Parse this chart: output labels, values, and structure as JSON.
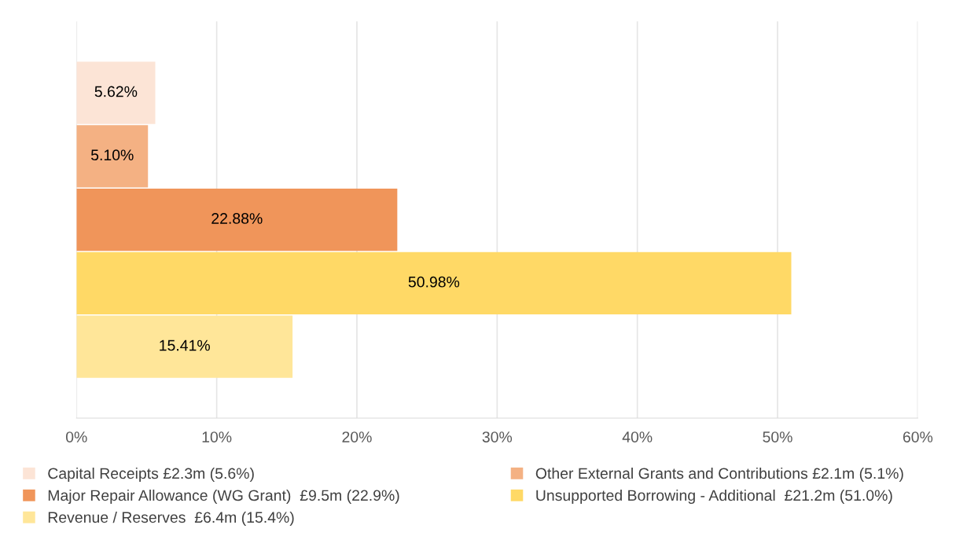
{
  "chart_data": {
    "type": "bar",
    "orientation": "horizontal",
    "categories": [
      null
    ],
    "series": [
      {
        "name": "Capital Receipts £2.3m (5.6%)",
        "color": "#fce4d6",
        "values": [
          5.62
        ],
        "value_labels": [
          "5.62%"
        ]
      },
      {
        "name": "Other External Grants and Contributions £2.1m (5.1%)",
        "color": "#f4b183",
        "values": [
          5.1
        ],
        "value_labels": [
          "5.10%"
        ]
      },
      {
        "name": "Major Repair Allowance (WG Grant)  £9.5m (22.9%)",
        "color": "#f0955a",
        "values": [
          22.88
        ],
        "value_labels": [
          "22.88%"
        ]
      },
      {
        "name": "Unsupported Borrowing - Additional  £21.2m (51.0%)",
        "color": "#ffd966",
        "values": [
          50.98
        ],
        "value_labels": [
          "50.98%"
        ]
      },
      {
        "name": "Revenue / Reserves  £6.4m (15.4%)",
        "color": "#ffe699",
        "values": [
          15.41
        ],
        "value_labels": [
          "15.41%"
        ]
      }
    ],
    "xlim": [
      0,
      60
    ],
    "xticks": [
      {
        "value": 0,
        "label": "0%"
      },
      {
        "value": 10,
        "label": "10%"
      },
      {
        "value": 20,
        "label": "20%"
      },
      {
        "value": 30,
        "label": "30%"
      },
      {
        "value": 40,
        "label": "40%"
      },
      {
        "value": 50,
        "label": "50%"
      },
      {
        "value": 60,
        "label": "60%"
      }
    ],
    "grid": "x",
    "legend": "bottom"
  }
}
